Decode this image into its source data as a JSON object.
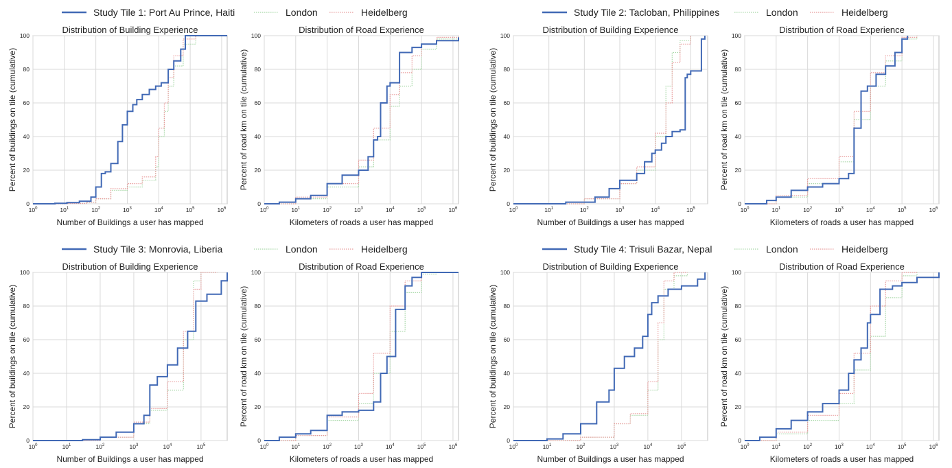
{
  "colors": {
    "study": "#4169b5",
    "london": "#a8d8a8",
    "heidelberg": "#e89a9a",
    "grid": "#d9d9d9",
    "panel_border": "#bfbfbf",
    "text": "#222222"
  },
  "common": {
    "legend_london": "London",
    "legend_heidelberg": "Heidelberg",
    "building_title": "Distribution of Building Experience",
    "road_title": "Distribution of Road Experience",
    "building_xlabel": "Number of Buildings a user has mapped",
    "road_xlabel": "Kilometers of roads a user has mapped",
    "building_ylabel": "Percent of buildings on tile (cumulative)",
    "road_ylabel": "Percent of road km on tile (cumulative)",
    "yticks": [
      "0",
      "20",
      "40",
      "60",
      "80",
      "100"
    ],
    "xticks": [
      "10",
      "10",
      "10",
      "10",
      "10",
      "10",
      "10"
    ],
    "xtick_exponents": [
      "0",
      "1",
      "2",
      "3",
      "4",
      "5",
      "6"
    ]
  },
  "chart_data": [
    {
      "tile": "Study Tile 1: Port Au Prince, Haiti",
      "building": {
        "type": "line",
        "title": "Distribution of Building Experience",
        "xscale": "log",
        "xlim": [
          1,
          1500000
        ],
        "ylim": [
          0,
          100
        ],
        "xlabel": "Number of Buildings a user has mapped",
        "ylabel": "Percent of buildings on tile (cumulative)",
        "grid": true,
        "series": [
          {
            "name": "Study Tile 1: Port Au Prince, Haiti",
            "x": [
              1,
              5,
              12,
              30,
              70,
              100,
              150,
              200,
              300,
              500,
              700,
              1000,
              1500,
              2000,
              3000,
              5000,
              8000,
              12000,
              20000,
              30000,
              50000,
              70000,
              150000,
              1500000
            ],
            "y": [
              0,
              0.3,
              0.7,
              1.5,
              4,
              10,
              18,
              19,
              24,
              37,
              47,
              55,
              59,
              62,
              65,
              68,
              70,
              72,
              80,
              85,
              92,
              100,
              100,
              100
            ]
          },
          {
            "x": [
              1,
              10,
              50,
              100,
              300,
              1000,
              3000,
              8000,
              10000,
              15000,
              20000,
              30000,
              60000,
              150000
            ],
            "y": [
              0,
              0.2,
              1,
              3,
              8,
              10,
              14,
              22,
              40,
              55,
              70,
              82,
              95,
              100
            ]
          },
          {
            "x": [
              1,
              10,
              50,
              100,
              300,
              1000,
              3000,
              8000,
              10000,
              15000,
              20000,
              30000,
              60000,
              150000
            ],
            "y": [
              0,
              0.2,
              1,
              3,
              9,
              12,
              16,
              28,
              45,
              60,
              75,
              88,
              98,
              100
            ]
          }
        ]
      },
      "road": {
        "type": "line",
        "title": "Distribution of Road Experience",
        "xscale": "log",
        "xlim": [
          1,
          1500000
        ],
        "ylim": [
          0,
          100
        ],
        "xlabel": "Kilometers of roads a user has mapped",
        "ylabel": "Percent of road km on tile (cumulative)",
        "grid": true,
        "series": [
          {
            "name": "Study Tile 1: Port Au Prince, Haiti",
            "x": [
              1,
              3,
              10,
              30,
              100,
              300,
              1000,
              2000,
              3000,
              4000,
              5000,
              8000,
              10000,
              20000,
              50000,
              100000,
              300000,
              1500000
            ],
            "y": [
              0,
              1,
              3,
              5,
              12,
              17,
              20,
              28,
              38,
              40,
              60,
              70,
              72,
              90,
              93,
              95,
              97,
              99
            ]
          },
          {
            "x": [
              1,
              10,
              100,
              1000,
              3000,
              10000,
              20000,
              50000,
              100000,
              300000,
              1500000
            ],
            "y": [
              0,
              3,
              10,
              22,
              38,
              58,
              70,
              80,
              92,
              98,
              100
            ]
          },
          {
            "x": [
              1,
              10,
              100,
              1000,
              3000,
              10000,
              20000,
              50000,
              100000,
              300000,
              1500000
            ],
            "y": [
              0,
              4,
              12,
              26,
              45,
              65,
              78,
              88,
              95,
              99,
              100
            ]
          }
        ]
      }
    },
    {
      "tile": "Study Tile 2: Tacloban, Philippines",
      "building": {
        "type": "line",
        "title": "Distribution of Building Experience",
        "xscale": "log",
        "xlim": [
          1,
          300000
        ],
        "ylim": [
          0,
          100
        ],
        "xlabel": "Number of Buildings a user has mapped",
        "ylabel": "Percent of buildings on tile (cumulative)",
        "grid": true,
        "series": [
          {
            "name": "Study Tile 2: Tacloban, Philippines",
            "x": [
              1,
              30,
              200,
              500,
              1000,
              3000,
              5000,
              8000,
              10000,
              15000,
              20000,
              30000,
              50000,
              70000,
              80000,
              100000,
              200000,
              250000
            ],
            "y": [
              0,
              1,
              4,
              9,
              14,
              18,
              25,
              30,
              32,
              36,
              40,
              43,
              44,
              75,
              77,
              79,
              98,
              100
            ]
          },
          {
            "x": [
              1,
              100,
              1000,
              3000,
              10000,
              20000,
              30000,
              50000,
              100000
            ],
            "y": [
              0,
              3,
              12,
              20,
              40,
              70,
              90,
              97,
              100
            ]
          },
          {
            "x": [
              1,
              100,
              1000,
              3000,
              10000,
              20000,
              30000,
              50000,
              100000
            ],
            "y": [
              0,
              3,
              12,
              22,
              42,
              60,
              84,
              95,
              100
            ]
          }
        ]
      },
      "road": {
        "type": "line",
        "title": "Distribution of Road Experience",
        "xscale": "log",
        "xlim": [
          1,
          1500000
        ],
        "ylim": [
          0,
          100
        ],
        "xlabel": "Kilometers of roads a user has mapped",
        "ylabel": "Percent of road km on tile (cumulative)",
        "grid": true,
        "series": [
          {
            "name": "Study Tile 2: Tacloban, Philippines",
            "x": [
              1,
              5,
              10,
              30,
              100,
              300,
              1000,
              2000,
              3000,
              5000,
              8000,
              15000,
              30000,
              60000,
              100000,
              150000
            ],
            "y": [
              0,
              2,
              4,
              8,
              10,
              12,
              15,
              18,
              45,
              67,
              70,
              77,
              82,
              90,
              98,
              100
            ]
          },
          {
            "x": [
              1,
              10,
              100,
              1000,
              3000,
              10000,
              30000,
              100000,
              300000
            ],
            "y": [
              0,
              4,
              12,
              25,
              50,
              70,
              85,
              98,
              100
            ]
          },
          {
            "x": [
              1,
              10,
              100,
              1000,
              3000,
              10000,
              30000,
              100000,
              300000
            ],
            "y": [
              0,
              5,
              15,
              28,
              55,
              78,
              88,
              99,
              100
            ]
          }
        ]
      }
    },
    {
      "tile": "Study Tile 3: Monrovia, Liberia",
      "building": {
        "type": "line",
        "title": "Distribution of Building Experience",
        "xscale": "log",
        "xlim": [
          1,
          600000
        ],
        "ylim": [
          0,
          100
        ],
        "xlabel": "Number of Buildings a user has mapped",
        "ylabel": "Percent of buildings on tile (cumulative)",
        "grid": true,
        "series": [
          {
            "name": "Study Tile 3: Monrovia, Liberia",
            "x": [
              1,
              30,
              100,
              300,
              1000,
              2000,
              3000,
              5000,
              10000,
              20000,
              40000,
              70000,
              150000,
              400000,
              600000
            ],
            "y": [
              0,
              0.5,
              2,
              5,
              10,
              15,
              33,
              38,
              45,
              55,
              65,
              83,
              87,
              95,
              100
            ]
          },
          {
            "x": [
              1,
              100,
              1000,
              3000,
              10000,
              30000,
              60000,
              100000,
              300000
            ],
            "y": [
              0,
              2,
              10,
              18,
              30,
              60,
              95,
              100,
              100
            ]
          },
          {
            "x": [
              1,
              100,
              1000,
              3000,
              10000,
              30000,
              60000,
              100000,
              300000
            ],
            "y": [
              0,
              2,
              11,
              19,
              35,
              65,
              90,
              100,
              100
            ]
          }
        ]
      },
      "road": {
        "type": "line",
        "title": "Distribution of Road Experience",
        "xscale": "log",
        "xlim": [
          1,
          1500000
        ],
        "ylim": [
          0,
          100
        ],
        "xlabel": "Kilometers of roads a user has mapped",
        "ylabel": "Percent of road km on tile (cumulative)",
        "grid": true,
        "series": [
          {
            "name": "Study Tile 3: Monrovia, Liberia",
            "x": [
              1,
              3,
              10,
              30,
              100,
              300,
              1000,
              3000,
              5000,
              8000,
              15000,
              30000,
              50000,
              100000,
              1500000
            ],
            "y": [
              0,
              2,
              4,
              6,
              15,
              17,
              18,
              23,
              40,
              50,
              78,
              92,
              97,
              100,
              100
            ]
          },
          {
            "x": [
              1,
              10,
              100,
              1000,
              3000,
              10000,
              30000,
              100000,
              300000
            ],
            "y": [
              0,
              3,
              12,
              22,
              40,
              65,
              88,
              99,
              100
            ]
          },
          {
            "x": [
              1,
              10,
              100,
              1000,
              3000,
              10000,
              30000,
              100000,
              300000
            ],
            "y": [
              0,
              3,
              14,
              28,
              52,
              80,
              95,
              100,
              100
            ]
          }
        ]
      }
    },
    {
      "tile": "Study Tile 4: Trisuli Bazar, Nepal",
      "building": {
        "type": "line",
        "title": "Distribution of Building Experience",
        "xscale": "log",
        "xlim": [
          1,
          600000
        ],
        "ylim": [
          0,
          100
        ],
        "xlabel": "Number of Buildings a user has mapped",
        "ylabel": "Percent of buildings on tile (cumulative)",
        "grid": true,
        "series": [
          {
            "name": "Study Tile 4: Trisuli Bazar, Nepal",
            "x": [
              1,
              10,
              30,
              100,
              300,
              700,
              1000,
              2000,
              4000,
              7000,
              10000,
              13000,
              20000,
              40000,
              100000,
              300000,
              500000
            ],
            "y": [
              0,
              1,
              4,
              10,
              23,
              30,
              43,
              50,
              55,
              62,
              75,
              82,
              86,
              90,
              92,
              96,
              100
            ]
          },
          {
            "x": [
              1,
              100,
              1000,
              3000,
              10000,
              20000,
              30000,
              60000,
              150000
            ],
            "y": [
              0,
              2,
              10,
              15,
              30,
              60,
              90,
              98,
              100
            ]
          },
          {
            "x": [
              1,
              100,
              1000,
              3000,
              10000,
              20000,
              30000,
              60000,
              150000
            ],
            "y": [
              0,
              2,
              10,
              16,
              35,
              70,
              95,
              100,
              100
            ]
          }
        ]
      },
      "road": {
        "type": "line",
        "title": "Distribution of Road Experience",
        "xscale": "log",
        "xlim": [
          1,
          1500000
        ],
        "ylim": [
          0,
          100
        ],
        "xlabel": "Kilometers of roads a user has mapped",
        "ylabel": "Percent of road km on tile (cumulative)",
        "grid": true,
        "series": [
          {
            "name": "Study Tile 4: Trisuli Bazar, Nepal",
            "x": [
              1,
              3,
              10,
              30,
              100,
              300,
              1000,
              2000,
              3000,
              5000,
              8000,
              10000,
              20000,
              50000,
              100000,
              300000,
              1500000
            ],
            "y": [
              0,
              2,
              7,
              12,
              17,
              22,
              30,
              40,
              48,
              55,
              70,
              75,
              90,
              92,
              94,
              97,
              100
            ]
          },
          {
            "x": [
              1,
              10,
              100,
              1000,
              3000,
              10000,
              30000,
              100000,
              300000
            ],
            "y": [
              0,
              4,
              12,
              22,
              42,
              62,
              85,
              98,
              100
            ]
          },
          {
            "x": [
              1,
              10,
              100,
              1000,
              3000,
              10000,
              30000,
              100000,
              300000
            ],
            "y": [
              0,
              5,
              15,
              28,
              52,
              80,
              95,
              100,
              100
            ]
          }
        ]
      }
    }
  ]
}
